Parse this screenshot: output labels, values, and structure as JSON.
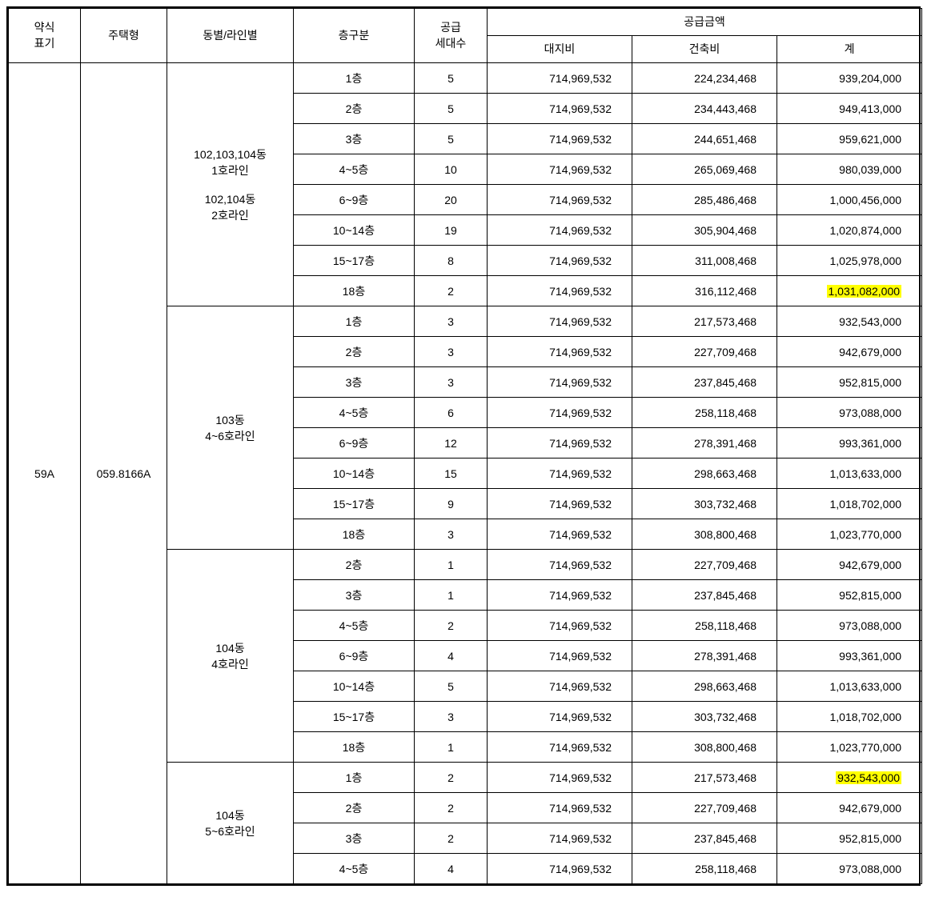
{
  "headers": {
    "short": "약식\n표기",
    "type": "주택형",
    "dongline": "동별/라인별",
    "floor": "층구분",
    "units": "공급\n세대수",
    "supply_group": "공급금액",
    "land": "대지비",
    "build": "건축비",
    "total": "계"
  },
  "short_label": "59A",
  "type_label": "059.8166A",
  "groups": [
    {
      "dong": "102,103,104동\n1호라인\n\n102,104동\n2호라인",
      "rows": [
        {
          "floor": "1층",
          "units": "5",
          "land": "714,969,532",
          "build": "224,234,468",
          "total": "939,204,000",
          "hl": false
        },
        {
          "floor": "2층",
          "units": "5",
          "land": "714,969,532",
          "build": "234,443,468",
          "total": "949,413,000",
          "hl": false
        },
        {
          "floor": "3층",
          "units": "5",
          "land": "714,969,532",
          "build": "244,651,468",
          "total": "959,621,000",
          "hl": false
        },
        {
          "floor": "4~5층",
          "units": "10",
          "land": "714,969,532",
          "build": "265,069,468",
          "total": "980,039,000",
          "hl": false
        },
        {
          "floor": "6~9층",
          "units": "20",
          "land": "714,969,532",
          "build": "285,486,468",
          "total": "1,000,456,000",
          "hl": false
        },
        {
          "floor": "10~14층",
          "units": "19",
          "land": "714,969,532",
          "build": "305,904,468",
          "total": "1,020,874,000",
          "hl": false
        },
        {
          "floor": "15~17층",
          "units": "8",
          "land": "714,969,532",
          "build": "311,008,468",
          "total": "1,025,978,000",
          "hl": false
        },
        {
          "floor": "18층",
          "units": "2",
          "land": "714,969,532",
          "build": "316,112,468",
          "total": "1,031,082,000",
          "hl": true
        }
      ]
    },
    {
      "dong": "103동\n4~6호라인",
      "rows": [
        {
          "floor": "1층",
          "units": "3",
          "land": "714,969,532",
          "build": "217,573,468",
          "total": "932,543,000",
          "hl": false
        },
        {
          "floor": "2층",
          "units": "3",
          "land": "714,969,532",
          "build": "227,709,468",
          "total": "942,679,000",
          "hl": false
        },
        {
          "floor": "3층",
          "units": "3",
          "land": "714,969,532",
          "build": "237,845,468",
          "total": "952,815,000",
          "hl": false
        },
        {
          "floor": "4~5층",
          "units": "6",
          "land": "714,969,532",
          "build": "258,118,468",
          "total": "973,088,000",
          "hl": false
        },
        {
          "floor": "6~9층",
          "units": "12",
          "land": "714,969,532",
          "build": "278,391,468",
          "total": "993,361,000",
          "hl": false
        },
        {
          "floor": "10~14층",
          "units": "15",
          "land": "714,969,532",
          "build": "298,663,468",
          "total": "1,013,633,000",
          "hl": false
        },
        {
          "floor": "15~17층",
          "units": "9",
          "land": "714,969,532",
          "build": "303,732,468",
          "total": "1,018,702,000",
          "hl": false
        },
        {
          "floor": "18층",
          "units": "3",
          "land": "714,969,532",
          "build": "308,800,468",
          "total": "1,023,770,000",
          "hl": false
        }
      ]
    },
    {
      "dong": "104동\n4호라인",
      "rows": [
        {
          "floor": "2층",
          "units": "1",
          "land": "714,969,532",
          "build": "227,709,468",
          "total": "942,679,000",
          "hl": false
        },
        {
          "floor": "3층",
          "units": "1",
          "land": "714,969,532",
          "build": "237,845,468",
          "total": "952,815,000",
          "hl": false
        },
        {
          "floor": "4~5층",
          "units": "2",
          "land": "714,969,532",
          "build": "258,118,468",
          "total": "973,088,000",
          "hl": false
        },
        {
          "floor": "6~9층",
          "units": "4",
          "land": "714,969,532",
          "build": "278,391,468",
          "total": "993,361,000",
          "hl": false
        },
        {
          "floor": "10~14층",
          "units": "5",
          "land": "714,969,532",
          "build": "298,663,468",
          "total": "1,013,633,000",
          "hl": false
        },
        {
          "floor": "15~17층",
          "units": "3",
          "land": "714,969,532",
          "build": "303,732,468",
          "total": "1,018,702,000",
          "hl": false
        },
        {
          "floor": "18층",
          "units": "1",
          "land": "714,969,532",
          "build": "308,800,468",
          "total": "1,023,770,000",
          "hl": false
        }
      ]
    },
    {
      "dong": "104동\n5~6호라인",
      "rows": [
        {
          "floor": "1층",
          "units": "2",
          "land": "714,969,532",
          "build": "217,573,468",
          "total": "932,543,000",
          "hl": true
        },
        {
          "floor": "2층",
          "units": "2",
          "land": "714,969,532",
          "build": "227,709,468",
          "total": "942,679,000",
          "hl": false
        },
        {
          "floor": "3층",
          "units": "2",
          "land": "714,969,532",
          "build": "237,845,468",
          "total": "952,815,000",
          "hl": false
        },
        {
          "floor": "4~5층",
          "units": "4",
          "land": "714,969,532",
          "build": "258,118,468",
          "total": "973,088,000",
          "hl": false
        }
      ]
    }
  ]
}
